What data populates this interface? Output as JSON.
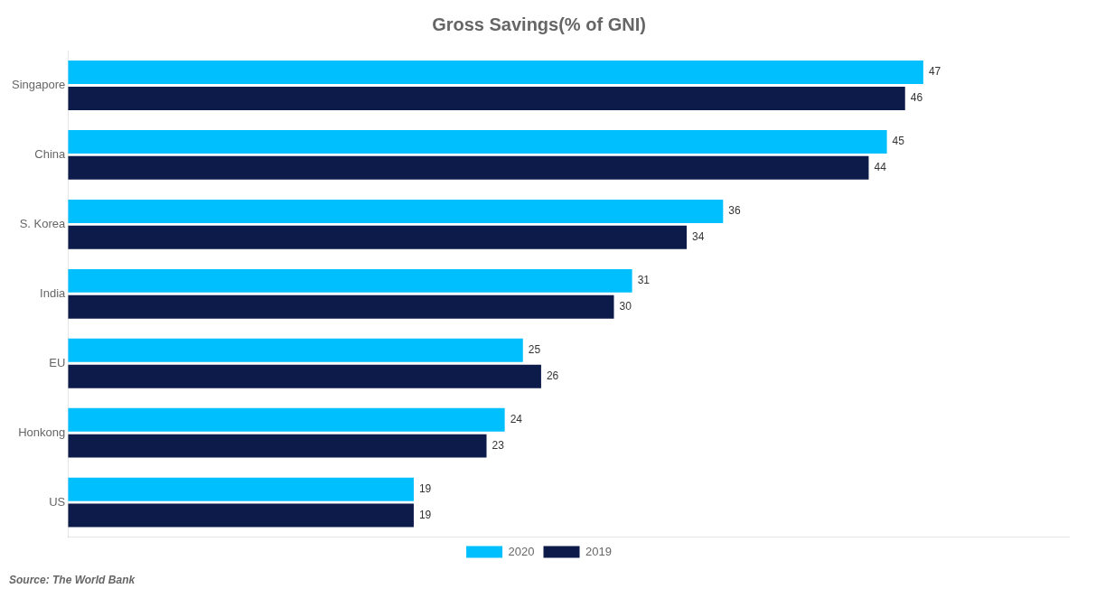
{
  "chart_data": {
    "type": "bar",
    "orientation": "horizontal",
    "title": "Gross Savings(% of GNI)",
    "categories": [
      "Singapore",
      "China",
      "S. Korea",
      "India",
      "EU",
      "Honkong",
      "US"
    ],
    "series": [
      {
        "name": "2020",
        "color": "#00BFFF",
        "values": [
          47,
          45,
          36,
          31,
          25,
          24,
          19
        ]
      },
      {
        "name": "2019",
        "color": "#0D1B4B",
        "values": [
          46,
          44,
          34,
          30,
          26,
          23,
          19
        ]
      }
    ],
    "xlim": [
      0,
      55
    ],
    "tick_labels": "y",
    "grid": false,
    "legend": "bottom",
    "data_labels": true,
    "annotation": "Source: The World Bank"
  }
}
